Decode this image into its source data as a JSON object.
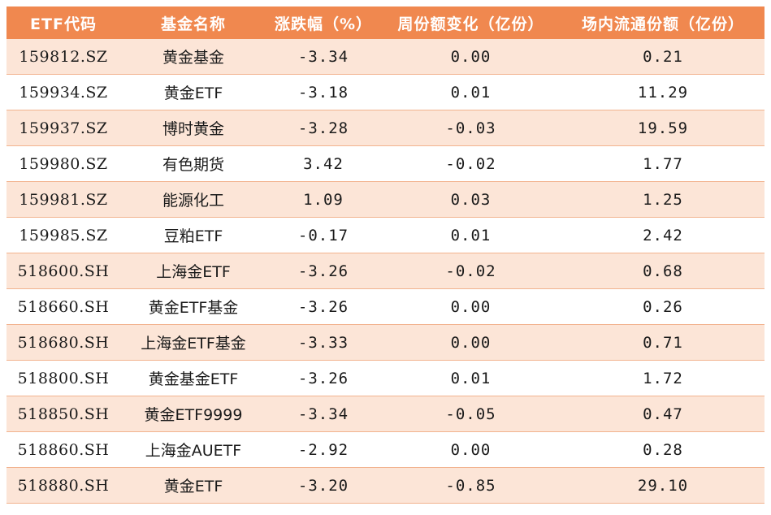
{
  "table": {
    "headers": [
      "ETF代码",
      "基金名称",
      "涨跌幅（%）",
      "周份额变化（亿份）",
      "场内流通份额（亿份）"
    ],
    "rows": [
      [
        "159812.SZ",
        "黄金基金",
        "-3.34",
        "0.00",
        "0.21"
      ],
      [
        "159934.SZ",
        "黄金ETF",
        "-3.18",
        "0.01",
        "11.29"
      ],
      [
        "159937.SZ",
        "博时黄金",
        "-3.28",
        "-0.03",
        "19.59"
      ],
      [
        "159980.SZ",
        "有色期货",
        "3.42",
        "-0.02",
        "1.77"
      ],
      [
        "159981.SZ",
        "能源化工",
        "1.09",
        "0.03",
        "1.25"
      ],
      [
        "159985.SZ",
        "豆粕ETF",
        "-0.17",
        "0.01",
        "2.42"
      ],
      [
        "518600.SH",
        "上海金ETF",
        "-3.26",
        "-0.02",
        "0.68"
      ],
      [
        "518660.SH",
        "黄金ETF基金",
        "-3.26",
        "0.00",
        "0.26"
      ],
      [
        "518680.SH",
        "上海金ETF基金",
        "-3.33",
        "0.00",
        "0.71"
      ],
      [
        "518800.SH",
        "黄金基金ETF",
        "-3.26",
        "0.01",
        "1.72"
      ],
      [
        "518850.SH",
        "黄金ETF9999",
        "-3.34",
        "-0.05",
        "0.47"
      ],
      [
        "518860.SH",
        "上海金AUETF",
        "-2.92",
        "0.00",
        "0.28"
      ],
      [
        "518880.SH",
        "黄金ETF",
        "-3.20",
        "-0.85",
        "29.10"
      ]
    ]
  },
  "colors": {
    "header_bg": "#f0884f",
    "header_text": "#ffffff",
    "row_stripe": "#fce5d7",
    "row_plain": "#ffffff",
    "row_border": "#f2b38f"
  }
}
